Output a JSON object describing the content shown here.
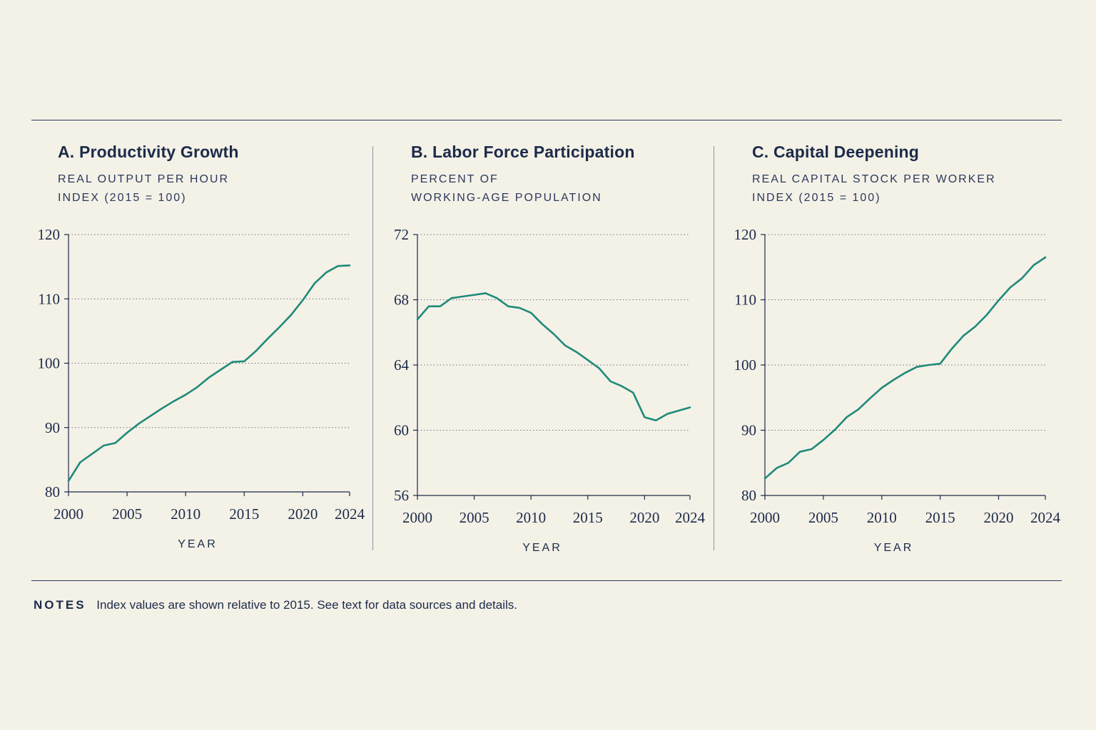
{
  "notes": {
    "label": "NOTES",
    "text": "Index values are shown relative to 2015. See text for data sources and details."
  },
  "colors": {
    "line": "#1f8a7a",
    "axis": "#1c2b4a",
    "grid": "#6b7385",
    "background": "#f4f1e7"
  },
  "chart_data": [
    {
      "type": "line",
      "title": "A. Productivity Growth",
      "subtitle": [
        "REAL OUTPUT PER HOUR",
        "INDEX (2015 = 100)"
      ],
      "xlabel": "YEAR",
      "ylabel": "",
      "xlim": [
        2000,
        2024
      ],
      "ylim": [
        80,
        120
      ],
      "xticks": [
        2000,
        2005,
        2010,
        2015,
        2020,
        2024
      ],
      "yticks": [
        80,
        90,
        100,
        110,
        120
      ],
      "grid": true,
      "x": [
        2000,
        2001,
        2002,
        2003,
        2004,
        2005,
        2006,
        2007,
        2008,
        2009,
        2010,
        2011,
        2012,
        2013,
        2014,
        2015,
        2016,
        2017,
        2018,
        2019,
        2020,
        2021,
        2022,
        2023,
        2024
      ],
      "series": [
        {
          "values": [
            81.7,
            84.6,
            85.9,
            87.2,
            87.6,
            89.2,
            90.6,
            91.8,
            93.0,
            94.1,
            95.1,
            96.3,
            97.8,
            99.0,
            100.2,
            100.3,
            101.9,
            103.8,
            105.6,
            107.5,
            109.8,
            112.4,
            114.1,
            115.1,
            115.2
          ]
        }
      ]
    },
    {
      "type": "line",
      "title": "B. Labor Force Participation",
      "subtitle": [
        "PERCENT OF",
        "WORKING-AGE POPULATION"
      ],
      "xlabel": "YEAR",
      "ylabel": "",
      "xlim": [
        2000,
        2024
      ],
      "ylim": [
        56,
        72
      ],
      "xticks": [
        2000,
        2005,
        2010,
        2015,
        2020,
        2024
      ],
      "yticks": [
        56,
        60,
        64,
        68,
        72
      ],
      "grid": true,
      "x": [
        2000,
        2001,
        2002,
        2003,
        2004,
        2005,
        2006,
        2007,
        2008,
        2009,
        2010,
        2011,
        2012,
        2013,
        2014,
        2015,
        2016,
        2017,
        2018,
        2019,
        2020,
        2021,
        2022,
        2023,
        2024
      ],
      "series": [
        {
          "values": [
            66.8,
            67.6,
            67.6,
            68.1,
            68.2,
            68.3,
            68.4,
            68.1,
            67.6,
            67.5,
            67.2,
            66.5,
            65.9,
            65.2,
            64.8,
            64.3,
            63.8,
            63.0,
            62.7,
            62.3,
            60.8,
            60.6,
            61.0,
            61.2,
            61.4
          ]
        }
      ]
    },
    {
      "type": "line",
      "title": "C. Capital Deepening",
      "subtitle": [
        "REAL CAPITAL STOCK PER WORKER",
        "INDEX (2015 = 100)"
      ],
      "xlabel": "YEAR",
      "ylabel": "",
      "xlim": [
        2000,
        2024
      ],
      "ylim": [
        80,
        120
      ],
      "xticks": [
        2000,
        2005,
        2010,
        2015,
        2020,
        2024
      ],
      "yticks": [
        80,
        90,
        100,
        110,
        120
      ],
      "grid": true,
      "x": [
        2000,
        2001,
        2002,
        2003,
        2004,
        2005,
        2006,
        2007,
        2008,
        2009,
        2010,
        2011,
        2012,
        2013,
        2014,
        2015,
        2016,
        2017,
        2018,
        2019,
        2020,
        2021,
        2022,
        2023,
        2024
      ],
      "series": [
        {
          "values": [
            82.6,
            84.2,
            85.0,
            86.7,
            87.1,
            88.5,
            90.1,
            92.0,
            93.2,
            94.9,
            96.5,
            97.7,
            98.8,
            99.7,
            100.0,
            100.2,
            102.5,
            104.5,
            105.9,
            107.7,
            109.9,
            111.9,
            113.3,
            115.3,
            116.5
          ]
        }
      ]
    }
  ]
}
